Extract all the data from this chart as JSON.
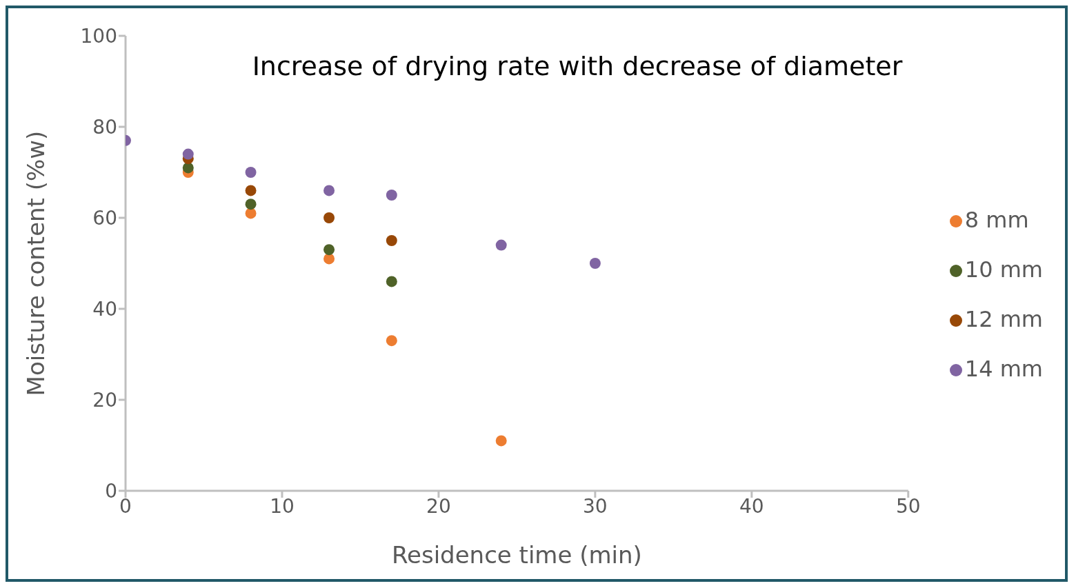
{
  "chart_data": {
    "type": "scatter",
    "title": "Increase of drying rate with decrease of diameter",
    "xlabel": "Residence time (min)",
    "ylabel": "Moisture content (%w)",
    "series": [
      {
        "name": "8 mm",
        "color": "#ed7d31",
        "x": [
          4,
          8,
          13,
          17,
          24
        ],
        "values": [
          70,
          61,
          51,
          33,
          11
        ]
      },
      {
        "name": "10 mm",
        "color": "#4f6228",
        "x": [
          4,
          8,
          13,
          17
        ],
        "values": [
          71,
          63,
          53,
          46
        ]
      },
      {
        "name": "12 mm",
        "color": "#984807",
        "x": [
          4,
          8,
          13,
          17
        ],
        "values": [
          73,
          66,
          60,
          55
        ]
      },
      {
        "name": "14 mm",
        "color": "#8064a2",
        "x": [
          0,
          4,
          8,
          13,
          17,
          24,
          30
        ],
        "values": [
          77,
          74,
          70,
          66,
          65,
          54,
          50
        ]
      }
    ],
    "xlim": [
      0,
      50
    ],
    "xticks": [
      0,
      10,
      20,
      30,
      40,
      50
    ],
    "ylim": [
      0,
      100
    ],
    "yticks": [
      0,
      20,
      40,
      60,
      80,
      100
    ],
    "grid": false,
    "legend": "right",
    "marker": "circle"
  }
}
